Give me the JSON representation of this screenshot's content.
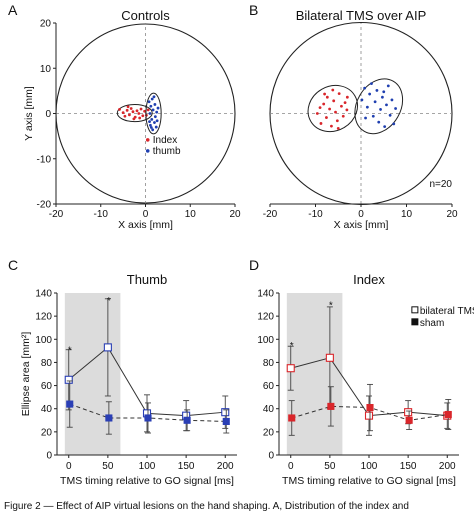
{
  "figure": {
    "caption": "Figure 2 — Effect of AIP virtual lesions on the hand shaping. A, Distribution of the index and"
  },
  "chart_data": [
    {
      "id": "A",
      "type": "scatter",
      "panel_letter": "A",
      "title": "Controls",
      "xlabel": "X axis [mm]",
      "ylabel": "Y axis [mm]",
      "xlim": [
        -20,
        20
      ],
      "ylim": [
        -20,
        20
      ],
      "xticks": [
        -20,
        -10,
        0,
        10,
        20
      ],
      "yticks": [
        -20,
        -10,
        0,
        10,
        20
      ],
      "circle_radius": 20,
      "legend_position": "bottom-right",
      "series": [
        {
          "name": "Index",
          "color": "#d9262b",
          "points": [
            [
              -5.8,
              0.9
            ],
            [
              -5.0,
              0.2
            ],
            [
              -4.6,
              -0.6
            ],
            [
              -4.1,
              0.7
            ],
            [
              -3.6,
              -0.3
            ],
            [
              -3.2,
              1.1
            ],
            [
              -2.8,
              0.4
            ],
            [
              -2.3,
              -0.8
            ],
            [
              -1.9,
              0.6
            ],
            [
              -1.5,
              0.0
            ],
            [
              -1.0,
              1.0
            ],
            [
              -0.6,
              -0.5
            ],
            [
              -0.2,
              0.5
            ],
            [
              0.2,
              -0.4
            ],
            [
              -3.9,
              1.5
            ],
            [
              -2.6,
              -1.2
            ],
            [
              -1.3,
              -1.0
            ],
            [
              0.6,
              0.8
            ]
          ],
          "ellipse": {
            "cx": -2.4,
            "cy": 0.1,
            "rx": 3.9,
            "ry": 1.9,
            "angle": 0
          }
        },
        {
          "name": "thumb",
          "color": "#1f3fb0",
          "points": [
            [
              0.8,
              2.6
            ],
            [
              1.5,
              3.2
            ],
            [
              1.2,
              1.6
            ],
            [
              2.1,
              2.0
            ],
            [
              1.7,
              0.8
            ],
            [
              2.5,
              0.3
            ],
            [
              1.0,
              0.0
            ],
            [
              2.2,
              -0.7
            ],
            [
              1.4,
              -1.3
            ],
            [
              2.0,
              -2.0
            ],
            [
              1.1,
              -2.6
            ],
            [
              2.4,
              -3.0
            ],
            [
              1.6,
              -3.6
            ],
            [
              2.8,
              1.2
            ],
            [
              0.9,
              -1.8
            ],
            [
              2.6,
              -1.6
            ],
            [
              1.9,
              3.7
            ],
            [
              1.3,
              -3.1
            ]
          ],
          "ellipse": {
            "cx": 1.8,
            "cy": 0.0,
            "rx": 1.7,
            "ry": 4.5,
            "angle": 0
          }
        }
      ]
    },
    {
      "id": "B",
      "type": "scatter",
      "panel_letter": "B",
      "title": "Bilateral TMS over AIP",
      "xlabel": "X axis [mm]",
      "ylabel": "",
      "xlim": [
        -20,
        20
      ],
      "ylim": [
        -20,
        20
      ],
      "xticks": [
        -20,
        -10,
        0,
        10,
        20
      ],
      "yticks": [],
      "circle_radius": 20,
      "annotation": "n=20",
      "series": [
        {
          "name": "",
          "color": "#d9262b",
          "points": [
            [
              -9.6,
              0.0
            ],
            [
              -8.8,
              -2.2
            ],
            [
              -8.2,
              2.1
            ],
            [
              -7.6,
              -0.9
            ],
            [
              -7.4,
              3.6
            ],
            [
              -6.9,
              1.0
            ],
            [
              -6.5,
              -2.8
            ],
            [
              -6.0,
              2.8
            ],
            [
              -5.6,
              0.3
            ],
            [
              -5.2,
              -1.6
            ],
            [
              -4.8,
              4.4
            ],
            [
              -4.3,
              1.6
            ],
            [
              -3.9,
              -0.6
            ],
            [
              -3.5,
              2.4
            ],
            [
              -3.1,
              0.8
            ],
            [
              -6.2,
              5.2
            ],
            [
              -8.0,
              4.3
            ],
            [
              -5.0,
              -3.3
            ],
            [
              -9.0,
              1.3
            ],
            [
              -3.0,
              3.6
            ]
          ],
          "ellipse": {
            "cx": -6.2,
            "cy": 1.1,
            "rx": 5.6,
            "ry": 4.9,
            "angle": -30
          }
        },
        {
          "name": "",
          "color": "#1f3fb0",
          "points": [
            [
              0.2,
              3.0
            ],
            [
              0.8,
              5.6
            ],
            [
              1.4,
              1.4
            ],
            [
              1.9,
              4.3
            ],
            [
              2.3,
              6.6
            ],
            [
              2.7,
              -0.6
            ],
            [
              3.1,
              2.6
            ],
            [
              3.5,
              5.1
            ],
            [
              3.9,
              -1.9
            ],
            [
              4.3,
              0.9
            ],
            [
              4.7,
              3.6
            ],
            [
              5.2,
              -2.9
            ],
            [
              5.6,
              1.9
            ],
            [
              6.0,
              6.1
            ],
            [
              6.4,
              -0.4
            ],
            [
              6.8,
              3.0
            ],
            [
              7.2,
              -2.3
            ],
            [
              7.6,
              1.1
            ],
            [
              1.0,
              -1.0
            ],
            [
              5.0,
              4.8
            ]
          ],
          "ellipse": {
            "cx": 3.9,
            "cy": 1.6,
            "rx": 4.8,
            "ry": 6.4,
            "angle": 30
          }
        }
      ]
    },
    {
      "id": "C",
      "type": "line",
      "panel_letter": "C",
      "title": "Thumb",
      "xlabel": "TMS timing relative to GO signal [ms]",
      "ylabel": "Ellipse area [mm²]",
      "x": [
        0,
        50,
        100,
        150,
        200
      ],
      "ylim": [
        0,
        140
      ],
      "yticks": [
        0,
        20,
        40,
        60,
        80,
        100,
        120,
        140
      ],
      "shaded_x": [
        0,
        50
      ],
      "series": [
        {
          "name": "bilateral TMS",
          "color": "#2a3fb5",
          "marker": "open-square",
          "line": "solid",
          "values": [
            65,
            93,
            36,
            34,
            37
          ],
          "errors": [
            26,
            42,
            16,
            13,
            14
          ]
        },
        {
          "name": "sham",
          "color": "#2a3fb5",
          "marker": "filled-square",
          "line": "dashed",
          "values": [
            44,
            32,
            32,
            30,
            29
          ],
          "errors": [
            20,
            14,
            13,
            9,
            10
          ]
        }
      ],
      "significance": [
        {
          "x": 0,
          "label": "*",
          "y": 92
        },
        {
          "x": 50,
          "label": "*",
          "y": 135
        }
      ]
    },
    {
      "id": "D",
      "type": "line",
      "panel_letter": "D",
      "title": "Index",
      "xlabel": "TMS timing relative to GO signal [ms]",
      "ylabel": "",
      "x": [
        0,
        50,
        100,
        150,
        200
      ],
      "ylim": [
        0,
        140
      ],
      "yticks": [
        0,
        20,
        40,
        60,
        80,
        100,
        120,
        140
      ],
      "shaded_x": [
        0,
        50
      ],
      "legend": [
        {
          "label": "bilateral TMS",
          "marker": "open-square"
        },
        {
          "label": "sham",
          "marker": "filled-square"
        }
      ],
      "series": [
        {
          "name": "bilateral TMS",
          "color": "#d9262b",
          "marker": "open-square",
          "line": "solid",
          "values": [
            75,
            84,
            34,
            37,
            34
          ],
          "errors": [
            19,
            44,
            17,
            10,
            11
          ]
        },
        {
          "name": "sham",
          "color": "#d9262b",
          "marker": "filled-square",
          "line": "dashed",
          "values": [
            32,
            42,
            41,
            30,
            35
          ],
          "errors": [
            15,
            17,
            20,
            8,
            13
          ]
        }
      ],
      "significance": [
        {
          "x": 0,
          "label": "*",
          "y": 96
        },
        {
          "x": 50,
          "label": "*",
          "y": 131
        }
      ]
    }
  ]
}
